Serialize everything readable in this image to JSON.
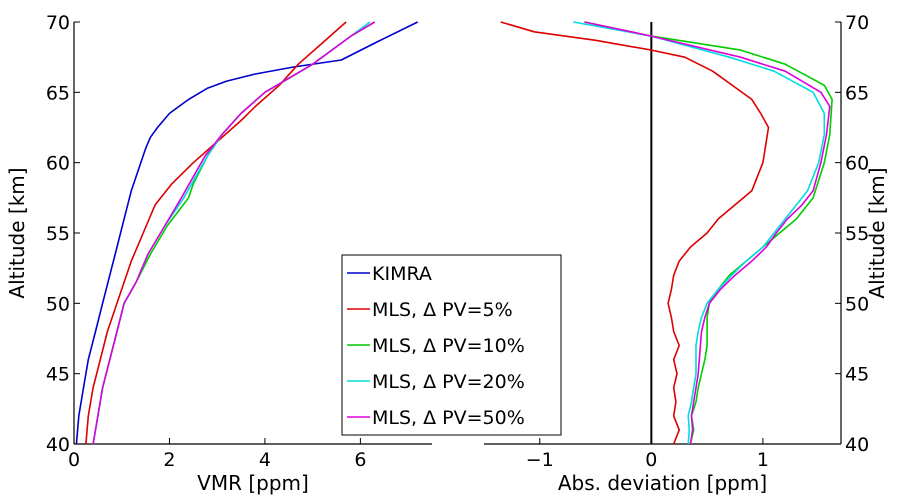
{
  "chart_data": [
    {
      "type": "line",
      "xlabel": "VMR [ppm]",
      "ylabel": "Altitude [km]",
      "xlim": [
        0,
        7.5
      ],
      "ylim": [
        40,
        70
      ],
      "xticks": [
        "0",
        "2",
        "4",
        "6"
      ],
      "yticks": [
        "40",
        "45",
        "50",
        "55",
        "60",
        "65",
        "70"
      ],
      "grid": false,
      "legend_position": "bottom-right",
      "series": [
        {
          "name": "KIMRA",
          "color": "#0000cc",
          "x": [
            0.05,
            0.1,
            0.2,
            0.3,
            0.45,
            0.6,
            0.75,
            0.9,
            1.05,
            1.2,
            1.35,
            1.5,
            1.6,
            1.75,
            2.0,
            2.4,
            2.8,
            3.2,
            3.8,
            4.6,
            5.6,
            6.3,
            7.2
          ],
          "y": [
            40,
            42,
            44,
            46,
            48,
            50,
            52,
            54,
            56,
            58,
            59.5,
            61,
            61.8,
            62.5,
            63.5,
            64.5,
            65.3,
            65.8,
            66.3,
            66.8,
            67.3,
            68.5,
            70
          ]
        },
        {
          "name": "MLS, Δ PV=5%",
          "color": "#dd0000",
          "x": [
            0.25,
            0.3,
            0.4,
            0.55,
            0.7,
            0.85,
            1.0,
            1.2,
            1.45,
            1.7,
            2.05,
            2.5,
            3.0,
            3.5,
            3.8,
            4.3,
            4.7,
            5.2,
            5.7
          ],
          "y": [
            40,
            42,
            44,
            46,
            48,
            49.5,
            51,
            53,
            55,
            57,
            58.5,
            60,
            61.5,
            63,
            64,
            65.5,
            67,
            68.5,
            70
          ]
        },
        {
          "name": "MLS, Δ PV=10%",
          "color": "#00cc00",
          "x": [
            0.4,
            0.5,
            0.6,
            0.75,
            0.9,
            1.05,
            1.3,
            1.6,
            1.95,
            2.4,
            2.5,
            2.8,
            3.1,
            3.5,
            4.0,
            4.5,
            5.0,
            5.4,
            5.8,
            6.3
          ],
          "y": [
            40,
            42,
            44,
            46,
            48,
            50,
            51.5,
            53.5,
            55.5,
            57.5,
            58.5,
            60.5,
            62,
            63.5,
            65,
            66,
            67,
            68,
            69,
            70
          ]
        },
        {
          "name": "MLS, Δ PV=20%",
          "color": "#00dddd",
          "x": [
            0.4,
            0.5,
            0.6,
            0.75,
            0.9,
            1.05,
            1.3,
            1.55,
            1.9,
            2.3,
            2.55,
            2.8,
            3.1,
            3.5,
            4.0,
            4.5,
            5.0,
            5.4,
            5.8,
            6.2
          ],
          "y": [
            40,
            42,
            44,
            46,
            48,
            50,
            51.5,
            53.5,
            55.5,
            57.5,
            59,
            60.5,
            62,
            63.5,
            65,
            66,
            67,
            68,
            69,
            70
          ]
        },
        {
          "name": "MLS, Δ PV=50%",
          "color": "#dd00dd",
          "x": [
            0.4,
            0.5,
            0.6,
            0.75,
            0.9,
            1.05,
            1.3,
            1.55,
            1.9,
            2.25,
            2.5,
            2.75,
            3.1,
            3.5,
            4.0,
            4.5,
            5.0,
            5.4,
            5.8,
            6.3
          ],
          "y": [
            40,
            42,
            44,
            46,
            48,
            50,
            51.5,
            53.5,
            55.5,
            57.5,
            59,
            60.5,
            62,
            63.5,
            65,
            66,
            67,
            68,
            69,
            70
          ]
        }
      ]
    },
    {
      "type": "line",
      "xlabel": "Abs. deviation [ppm]",
      "ylabel": "Altitude [km]",
      "xlim": [
        -1.5,
        1.7
      ],
      "ylim": [
        40,
        70
      ],
      "xticks": [
        "−1",
        "0",
        "1"
      ],
      "yticks": [
        "40",
        "45",
        "50",
        "55",
        "60",
        "65",
        "70"
      ],
      "grid": false,
      "zero_line": 0,
      "series": [
        {
          "name": "MLS, Δ PV=5%",
          "color": "#dd0000",
          "x": [
            0.2,
            0.25,
            0.2,
            0.22,
            0.2,
            0.23,
            0.2,
            0.25,
            0.2,
            0.18,
            0.15,
            0.18,
            0.2,
            0.25,
            0.35,
            0.5,
            0.6,
            0.75,
            0.9,
            1.0,
            1.05,
            0.98,
            0.9,
            0.55,
            0.3,
            0.0,
            -0.5,
            -1.05,
            -1.35
          ],
          "y": [
            40,
            41,
            42,
            43,
            44,
            45,
            46,
            47,
            48,
            49,
            50,
            51,
            52,
            53,
            54,
            55,
            56,
            57,
            58,
            60,
            62.5,
            63.5,
            64.5,
            66.5,
            67.5,
            68,
            68.7,
            69.3,
            70
          ]
        },
        {
          "name": "MLS, Δ PV=10%",
          "color": "#00cc00",
          "x": [
            0.35,
            0.38,
            0.36,
            0.4,
            0.42,
            0.45,
            0.48,
            0.5,
            0.5,
            0.5,
            0.52,
            0.6,
            0.7,
            0.85,
            1.0,
            1.15,
            1.3,
            1.4,
            1.45,
            1.55,
            1.6,
            1.62,
            1.55,
            1.2,
            0.8,
            0.0,
            -0.6
          ],
          "y": [
            40,
            41,
            42,
            43,
            44,
            45,
            46,
            47,
            48,
            49,
            50,
            51,
            52,
            53,
            54,
            55,
            56,
            57,
            57.5,
            60,
            62,
            64.5,
            65.5,
            67,
            68,
            69,
            70
          ]
        },
        {
          "name": "MLS, Δ PV=20%",
          "color": "#00dddd",
          "x": [
            0.33,
            0.34,
            0.33,
            0.36,
            0.38,
            0.4,
            0.4,
            0.4,
            0.42,
            0.45,
            0.5,
            0.6,
            0.72,
            0.85,
            1.0,
            1.1,
            1.2,
            1.3,
            1.4,
            1.5,
            1.55,
            1.55,
            1.45,
            1.1,
            0.7,
            0.0,
            -0.7
          ],
          "y": [
            40,
            41,
            42,
            43,
            44,
            45,
            46,
            47,
            48,
            49,
            50,
            51,
            52,
            53,
            54,
            55,
            56,
            57,
            58,
            60,
            62,
            63.5,
            65,
            66.5,
            67.5,
            69,
            70
          ]
        },
        {
          "name": "MLS, Δ PV=50%",
          "color": "#dd00dd",
          "x": [
            0.35,
            0.37,
            0.36,
            0.38,
            0.4,
            0.42,
            0.43,
            0.44,
            0.45,
            0.48,
            0.52,
            0.62,
            0.75,
            0.9,
            1.03,
            1.12,
            1.22,
            1.35,
            1.45,
            1.52,
            1.57,
            1.6,
            1.52,
            1.2,
            0.8,
            0.0,
            -0.6
          ],
          "y": [
            40,
            41,
            42,
            43,
            44,
            45,
            46,
            47,
            48,
            49,
            50,
            51,
            52,
            53,
            54,
            55,
            56,
            57,
            58,
            60,
            62,
            64,
            65,
            66.5,
            67.5,
            69,
            70
          ]
        }
      ]
    }
  ]
}
